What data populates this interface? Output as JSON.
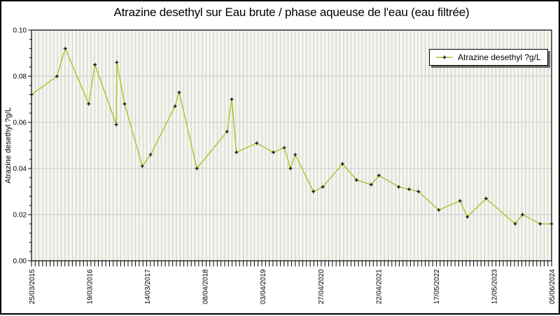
{
  "title": "Atrazine desethyl sur Eau brute / phase aqueuse de l'eau (eau filtrée)",
  "legend": {
    "label": "Atrazine desethyl ?g/L"
  },
  "colors": {
    "page_background": "#ffffff",
    "page_border": "#000000",
    "plot_background": "#f5f5ee",
    "grid": "#cccccc",
    "frame": "#000000",
    "line": "#a4cb32",
    "marker": "#000000",
    "legend_background": "#ffffff",
    "legend_border": "#000000",
    "text": "#000000"
  },
  "chart_data": {
    "type": "line",
    "title": "Atrazine desethyl sur Eau brute / phase aqueuse de l'eau (eau filtrée)",
    "xlabel": "",
    "ylabel": "Atrazine desethyl ?g/L",
    "ylim": [
      0.0,
      0.1
    ],
    "y_tick_values": [
      0.0,
      0.02,
      0.04,
      0.06,
      0.08,
      0.1
    ],
    "y_tick_labels": [
      "0.00",
      "0.02",
      "0.04",
      "0.06",
      "0.08",
      "0.10"
    ],
    "y_minor_ticks_per_interval": 4,
    "x_tick_labels": [
      "25/03/2015",
      "19/03/2016",
      "14/03/2017",
      "08/04/2018",
      "03/04/2019",
      "27/04/2020",
      "22/04/2021",
      "17/05/2022",
      "12/05/2023",
      "05/06/2024"
    ],
    "grid": {
      "vertical_divisions": 140,
      "vertical": "minor-x-gridlines",
      "horizontal": "major-y-gridlines"
    },
    "legend_position": "top-right",
    "series": [
      {
        "name": "Atrazine desethyl ?g/L",
        "color": "#a4cb32",
        "marker": "plus",
        "points": [
          [
            0.0,
            0.072
          ],
          [
            0.049,
            0.08
          ],
          [
            0.065,
            0.092
          ],
          [
            0.11,
            0.068
          ],
          [
            0.122,
            0.085
          ],
          [
            0.163,
            0.059
          ],
          [
            0.164,
            0.086
          ],
          [
            0.179,
            0.068
          ],
          [
            0.213,
            0.041
          ],
          [
            0.229,
            0.046
          ],
          [
            0.276,
            0.067
          ],
          [
            0.284,
            0.073
          ],
          [
            0.318,
            0.04
          ],
          [
            0.376,
            0.056
          ],
          [
            0.385,
            0.07
          ],
          [
            0.394,
            0.047
          ],
          [
            0.433,
            0.051
          ],
          [
            0.465,
            0.047
          ],
          [
            0.486,
            0.049
          ],
          [
            0.498,
            0.04
          ],
          [
            0.507,
            0.046
          ],
          [
            0.542,
            0.03
          ],
          [
            0.56,
            0.032
          ],
          [
            0.598,
            0.042
          ],
          [
            0.625,
            0.035
          ],
          [
            0.653,
            0.033
          ],
          [
            0.668,
            0.037
          ],
          [
            0.706,
            0.032
          ],
          [
            0.726,
            0.031
          ],
          [
            0.744,
            0.03
          ],
          [
            0.783,
            0.022
          ],
          [
            0.824,
            0.026
          ],
          [
            0.838,
            0.019
          ],
          [
            0.874,
            0.027
          ],
          [
            0.93,
            0.016
          ],
          [
            0.944,
            0.02
          ],
          [
            0.978,
            0.016
          ],
          [
            1.0,
            0.016
          ]
        ]
      }
    ]
  }
}
